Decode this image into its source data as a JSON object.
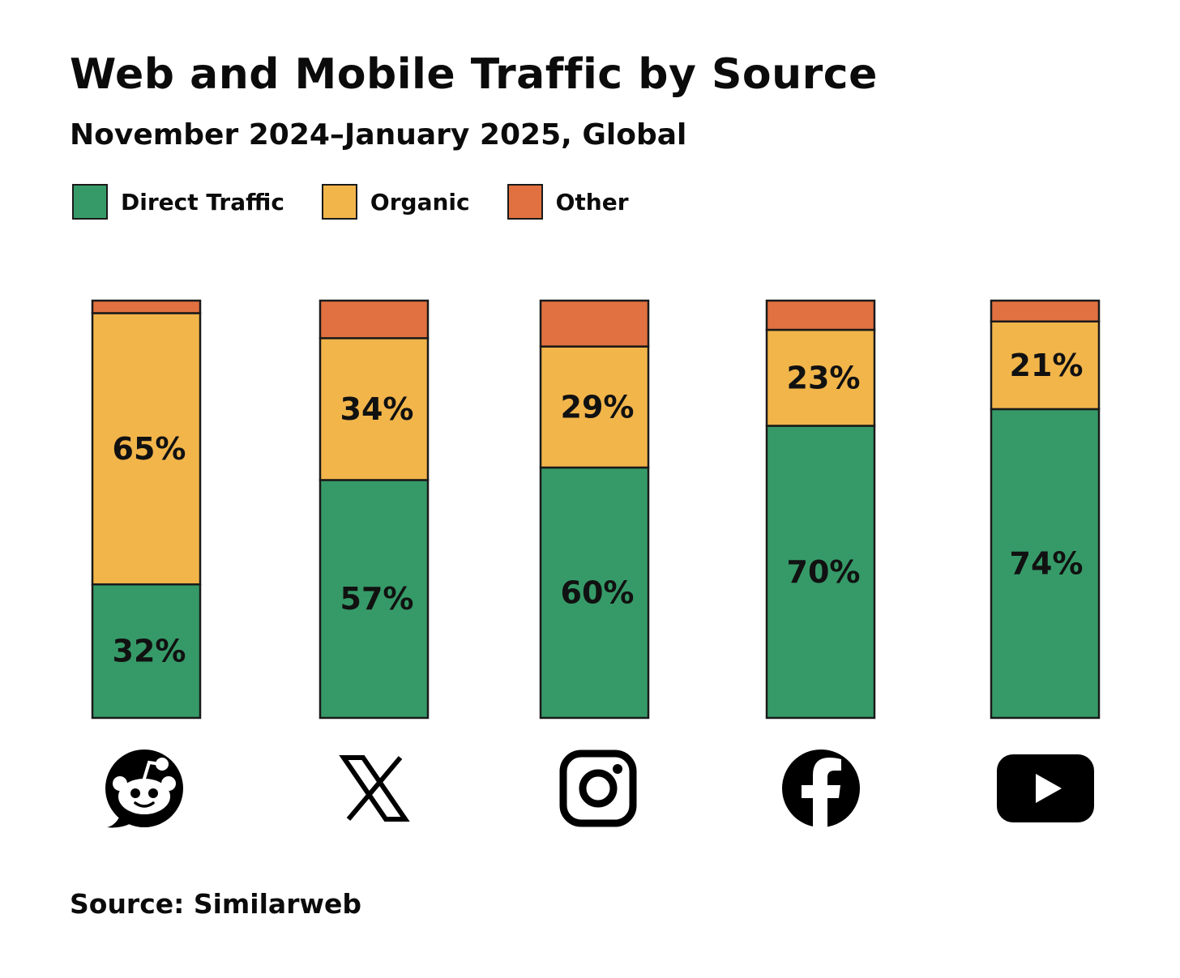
{
  "title": "Web and Mobile Traffic by Source",
  "subtitle": "November 2024–January 2025, Global",
  "source": "Source: Similarweb",
  "colors": {
    "direct": "#369a68",
    "organic": "#f2b54a",
    "other": "#e17140",
    "stroke": "#1a1a1a"
  },
  "legend": [
    {
      "key": "direct",
      "label": "Direct Traffic"
    },
    {
      "key": "organic",
      "label": "Organic"
    },
    {
      "key": "other",
      "label": "Other"
    }
  ],
  "chart_data": {
    "type": "bar",
    "stacked": true,
    "title": "Web and Mobile Traffic by Source",
    "subtitle": "November 2024–January 2025, Global",
    "categories": [
      "Reddit",
      "X",
      "Instagram",
      "Facebook",
      "YouTube"
    ],
    "category_icons": [
      "reddit-icon",
      "x-icon",
      "instagram-icon",
      "facebook-icon",
      "youtube-icon"
    ],
    "series": [
      {
        "name": "Direct Traffic",
        "key": "direct",
        "values": [
          32,
          57,
          60,
          70,
          74
        ],
        "labels": [
          "32%",
          "57%",
          "60%",
          "70%",
          "74%"
        ]
      },
      {
        "name": "Organic",
        "key": "organic",
        "values": [
          65,
          34,
          29,
          23,
          21
        ],
        "labels": [
          "65%",
          "34%",
          "29%",
          "23%",
          "21%"
        ]
      },
      {
        "name": "Other",
        "key": "other",
        "values": [
          3,
          9,
          11,
          7,
          5
        ],
        "labels": [
          "",
          "",
          "",
          "",
          ""
        ]
      }
    ],
    "ylim": [
      0,
      100
    ],
    "unit": "%",
    "legend_position": "top-left",
    "grid": false
  }
}
